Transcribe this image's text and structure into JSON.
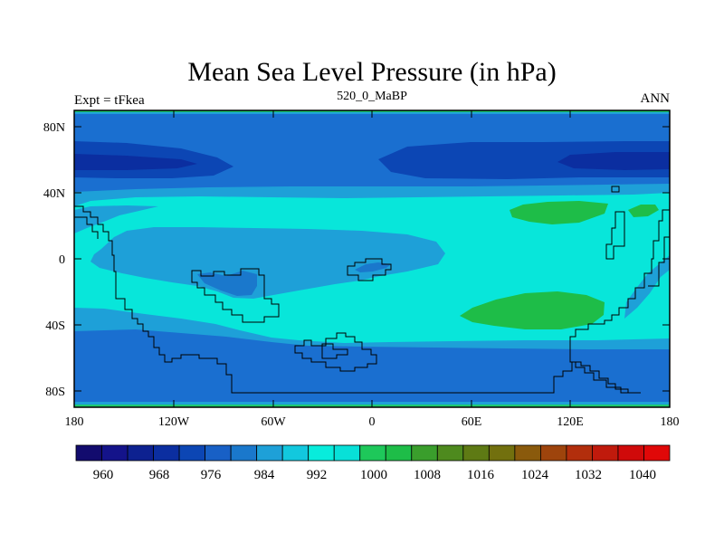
{
  "title": "Mean Sea Level Pressure (in hPa)",
  "left_label": "Expt = tFkea",
  "center_label": "520_0_MaBP",
  "right_label": "ANN",
  "lat_ticks": [
    "80N",
    "40N",
    "0",
    "40S",
    "80S"
  ],
  "lon_ticks": [
    "180",
    "120W",
    "60W",
    "0",
    "60E",
    "120E",
    "180"
  ],
  "colorbar": {
    "labels": [
      "960",
      "968",
      "976",
      "984",
      "992",
      "1000",
      "1008",
      "1016",
      "1024",
      "1032",
      "1040"
    ],
    "colors": [
      "#120b6e",
      "#14138a",
      "#0d2190",
      "#0b2ea0",
      "#0c46b4",
      "#1860c6",
      "#1a78cc",
      "#1ea0d8",
      "#12c8de",
      "#08ecdc",
      "#08e0d8",
      "#1ec85a",
      "#1ebd48",
      "#3a9e2c",
      "#4e8a1e",
      "#5e7a14",
      "#72700e",
      "#8a5a0c",
      "#9e440c",
      "#b22e0c",
      "#c01a0c",
      "#d00a0a",
      "#e00808"
    ]
  },
  "chart_data": {
    "type": "heatmap",
    "title": "Mean Sea Level Pressure (in hPa)",
    "variable": "Mean Sea Level Pressure",
    "units": "hPa",
    "experiment": "tFkea",
    "period": "520_0_MaBP",
    "season": "ANN",
    "x_range": [
      -180,
      180
    ],
    "y_range": [
      -90,
      90
    ],
    "contour_levels": [
      960,
      964,
      968,
      972,
      976,
      980,
      984,
      988,
      992,
      996,
      1000,
      1004,
      1008,
      1012,
      1016,
      1020,
      1024,
      1028,
      1032,
      1036,
      1040
    ],
    "observed_range": [
      976,
      1012
    ]
  }
}
